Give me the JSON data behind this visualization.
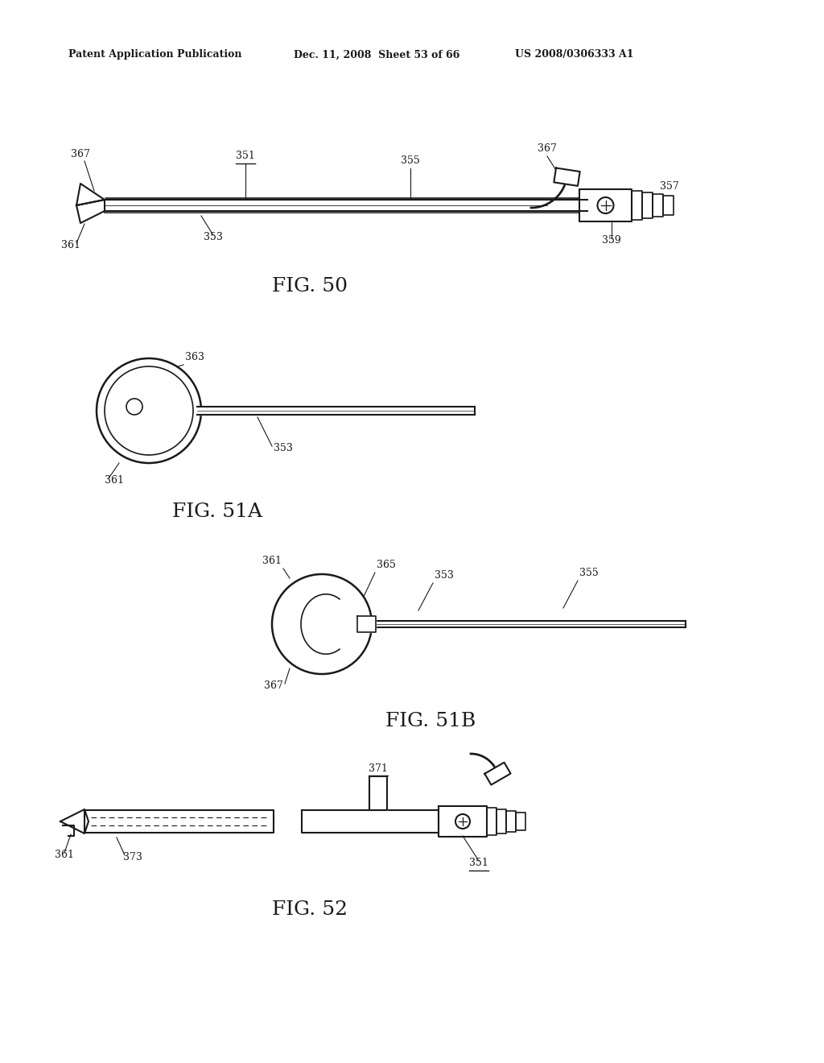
{
  "background_color": "#ffffff",
  "header_left": "Patent Application Publication",
  "header_mid": "Dec. 11, 2008  Sheet 53 of 66",
  "header_right": "US 2008/0306333 A1",
  "font_color": "#1a1a1a",
  "line_color": "#1a1a1a",
  "line_width": 1.5,
  "fig50_caption": "FIG. 50",
  "fig51a_caption": "FIG. 51A",
  "fig51b_caption": "FIG. 51B",
  "fig52_caption": "FIG. 52"
}
